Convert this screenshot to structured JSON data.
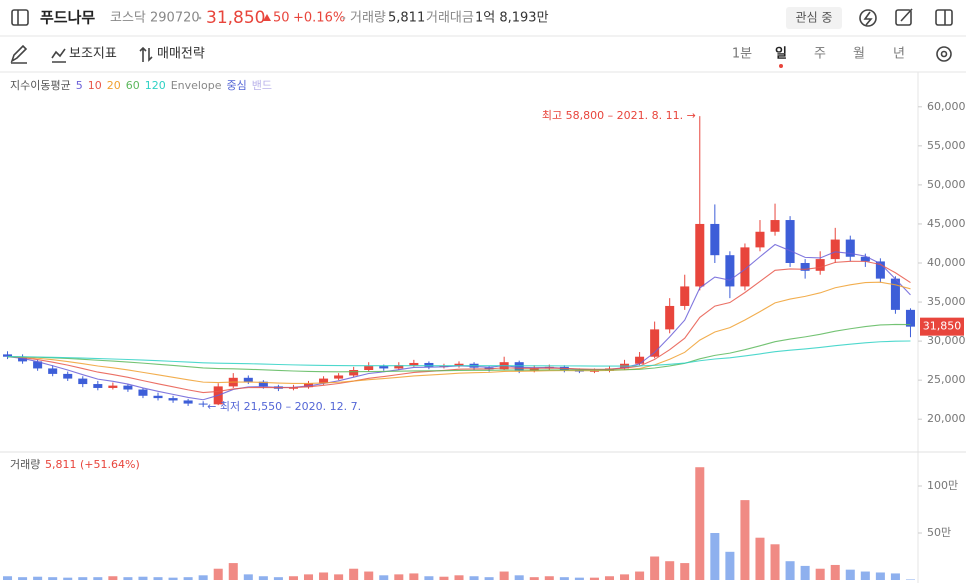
{
  "header": {
    "name": "푸드나무",
    "market": "코스닥",
    "code": "290720",
    "price": "31,850",
    "change": "50",
    "change_rate": "+0.16%",
    "volume_label": "거래량",
    "volume": "5,811",
    "amount_label": "거래대금",
    "amount": "1억 8,193만",
    "watch": "관심 중"
  },
  "toolbar": {
    "indicators": "보조지표",
    "strategy": "매매전략",
    "periods": [
      "1분",
      "일",
      "주",
      "월",
      "년"
    ]
  },
  "chart_data": [
    {
      "type": "candlestick",
      "legend": {
        "title": "지수이동평균",
        "periods": [
          5,
          10,
          20,
          60,
          120
        ],
        "colors": [
          "#6a5fd8",
          "#e8574a",
          "#f0a030",
          "#5cb85c",
          "#2fd1c4"
        ],
        "envelope": "Envelope",
        "center": "중심",
        "band": "밴드"
      },
      "open": [
        28300,
        28000,
        27400,
        26500,
        25800,
        25200,
        24500,
        24000,
        24300,
        23800,
        23000,
        22700,
        22400,
        22000,
        21900,
        24200,
        25300,
        24800,
        24200,
        23900,
        24100,
        24600,
        25200,
        25600,
        26300,
        26800,
        26500,
        26900,
        27200,
        26700,
        26800,
        27100,
        26600,
        26400,
        27300,
        26200,
        26500,
        26700,
        26300,
        26100,
        26200,
        26500,
        27100,
        28000,
        31500,
        34500,
        37000,
        45000,
        41000,
        37000,
        42000,
        44000,
        45500,
        40000,
        39000,
        40500,
        43000,
        40800,
        40200,
        38000,
        34000
      ],
      "high": [
        28700,
        28300,
        27600,
        26900,
        26100,
        25500,
        24900,
        24700,
        24500,
        24000,
        23400,
        23000,
        22600,
        22300,
        24600,
        25900,
        25600,
        25000,
        24400,
        24400,
        24900,
        25500,
        25900,
        26700,
        27300,
        27000,
        27300,
        27600,
        27400,
        27100,
        27400,
        27300,
        26800,
        28000,
        27500,
        26900,
        27000,
        26900,
        26500,
        26500,
        26800,
        27600,
        28600,
        32500,
        35500,
        38500,
        58800,
        47500,
        41500,
        42500,
        45500,
        47600,
        46000,
        40500,
        41500,
        44500,
        43500,
        41200,
        40600,
        38300,
        34200
      ],
      "low": [
        27700,
        27100,
        26200,
        25500,
        24900,
        24100,
        23700,
        23800,
        23500,
        22700,
        22400,
        22100,
        21700,
        21550,
        21800,
        24000,
        24500,
        23900,
        23600,
        23700,
        23900,
        24400,
        25000,
        25400,
        26100,
        26200,
        26300,
        26700,
        26400,
        26500,
        26600,
        26300,
        26100,
        26300,
        25900,
        26000,
        26300,
        26000,
        25900,
        25900,
        26000,
        26300,
        26900,
        27800,
        31000,
        34000,
        36500,
        40000,
        35500,
        36500,
        41500,
        43500,
        39500,
        38000,
        38500,
        40000,
        40200,
        39500,
        37500,
        33500,
        30500
      ],
      "close": [
        28000,
        27400,
        26500,
        25800,
        25200,
        24500,
        24000,
        24300,
        23800,
        23000,
        22700,
        22400,
        22000,
        21900,
        24200,
        25300,
        24800,
        24200,
        23900,
        24100,
        24600,
        25200,
        25600,
        26300,
        26800,
        26500,
        26900,
        27200,
        26700,
        26800,
        27100,
        26600,
        26400,
        27300,
        26200,
        26500,
        26700,
        26300,
        26100,
        26200,
        26500,
        27100,
        28000,
        31500,
        34500,
        37000,
        45000,
        41000,
        37000,
        42000,
        44000,
        45500,
        40000,
        39000,
        40500,
        43000,
        40800,
        40200,
        38000,
        34000,
        31850
      ],
      "up_color": "#e8453c",
      "down_color": "#3d5ed8",
      "ylim": [
        15800,
        64200
      ],
      "yticks": [
        {
          "value": 20000,
          "label": "20,000"
        },
        {
          "value": 25000,
          "label": "25,000"
        },
        {
          "value": 30000,
          "label": "30,000"
        },
        {
          "value": 35000,
          "label": "35,000"
        },
        {
          "value": 40000,
          "label": "40,000"
        },
        {
          "value": 45000,
          "label": "45,000"
        },
        {
          "value": 50000,
          "label": "50,000"
        },
        {
          "value": 55000,
          "label": "55,000"
        },
        {
          "value": 60000,
          "label": "60,000"
        }
      ],
      "last_price": {
        "value": 31850,
        "label": "31,850"
      },
      "annotations": [
        {
          "text": "최고 58,800 – 2021. 8. 11. →",
          "color": "#e8453c"
        },
        {
          "text": "← 최저 21,550 – 2020. 12. 7.",
          "color": "#5466d6"
        }
      ]
    },
    {
      "type": "bar",
      "title": "거래량",
      "subtitle": "5,811 (+51.64%)",
      "values": [
        40000,
        30000,
        35000,
        30000,
        25000,
        30000,
        30000,
        40000,
        30000,
        35000,
        30000,
        25000,
        30000,
        50000,
        120000,
        180000,
        60000,
        40000,
        30000,
        40000,
        60000,
        80000,
        60000,
        120000,
        90000,
        50000,
        60000,
        70000,
        40000,
        35000,
        50000,
        40000,
        30000,
        90000,
        50000,
        30000,
        40000,
        30000,
        25000,
        25000,
        40000,
        60000,
        90000,
        250000,
        200000,
        180000,
        1200000,
        500000,
        300000,
        850000,
        450000,
        380000,
        200000,
        150000,
        120000,
        160000,
        110000,
        90000,
        80000,
        70000,
        5811
      ],
      "up_color": "#f08a84",
      "down_color": "#8eb0ee",
      "ylim": [
        0,
        1330000
      ],
      "yticks": [
        {
          "value": 500000,
          "label": "50만"
        },
        {
          "value": 1000000,
          "label": "100만"
        }
      ]
    }
  ]
}
